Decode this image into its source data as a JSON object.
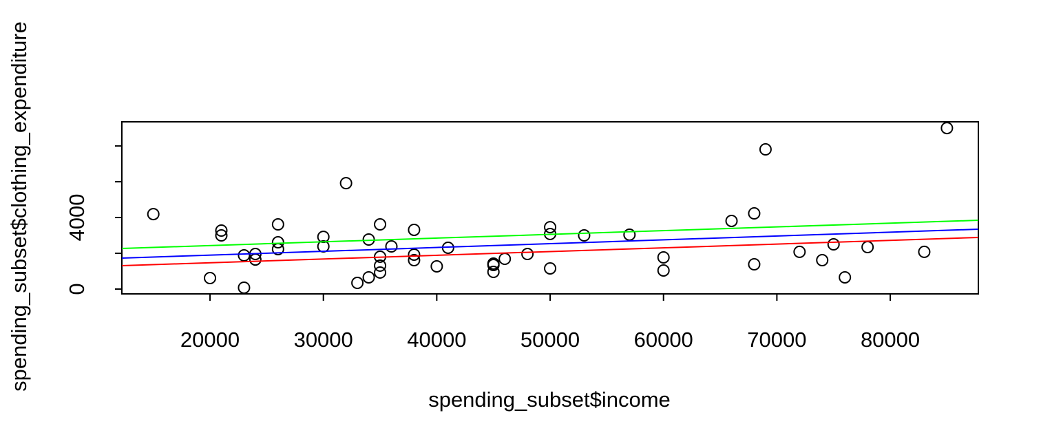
{
  "chart_data": {
    "type": "scatter",
    "xlabel": "spending_subset$income",
    "ylabel": "spending_subset$clothing_expenditure",
    "xlim": [
      12225,
      87770
    ],
    "ylim": [
      -270,
      9350
    ],
    "xticks": [
      20000,
      30000,
      40000,
      50000,
      60000,
      70000,
      80000
    ],
    "yticks": [
      0,
      4000
    ],
    "yminor_ticks": [
      2000,
      6000,
      8000
    ],
    "point_color": "#000000",
    "x": [
      15000,
      20000,
      21000,
      21000,
      23000,
      23000,
      24000,
      24000,
      26000,
      26000,
      26000,
      30000,
      30000,
      32000,
      33000,
      34000,
      34000,
      35000,
      35000,
      35000,
      35000,
      36000,
      38000,
      38000,
      38000,
      40000,
      41000,
      45000,
      45000,
      45000,
      46000,
      48000,
      50000,
      50000,
      50000,
      53000,
      57000,
      60000,
      60000,
      66000,
      68000,
      68000,
      69000,
      72000,
      74000,
      75000,
      76000,
      78000,
      83000,
      85000
    ],
    "y": [
      4190,
      615,
      3270,
      3000,
      1885,
      77,
      1960,
      1650,
      3615,
      2615,
      2230,
      2920,
      2385,
      5920,
      345,
      2770,
      655,
      3615,
      1810,
      1310,
      925,
      2385,
      3310,
      1925,
      1615,
      1270,
      2310,
      1425,
      1345,
      960,
      1690,
      1960,
      3460,
      3080,
      1155,
      3000,
      3040,
      1770,
      1040,
      3810,
      4230,
      1385,
      7810,
      2080,
      1615,
      2500,
      655,
      2345,
      2080,
      9000
    ],
    "lines": [
      {
        "color": "#00ff00",
        "x": [
          12225,
          87770
        ],
        "y": [
          2270,
          3846
        ]
      },
      {
        "color": "#0000ff",
        "x": [
          12225,
          87770
        ],
        "y": [
          1731,
          3346
        ]
      },
      {
        "color": "#ff0000",
        "x": [
          12225,
          87770
        ],
        "y": [
          1308,
          2885
        ]
      }
    ]
  }
}
